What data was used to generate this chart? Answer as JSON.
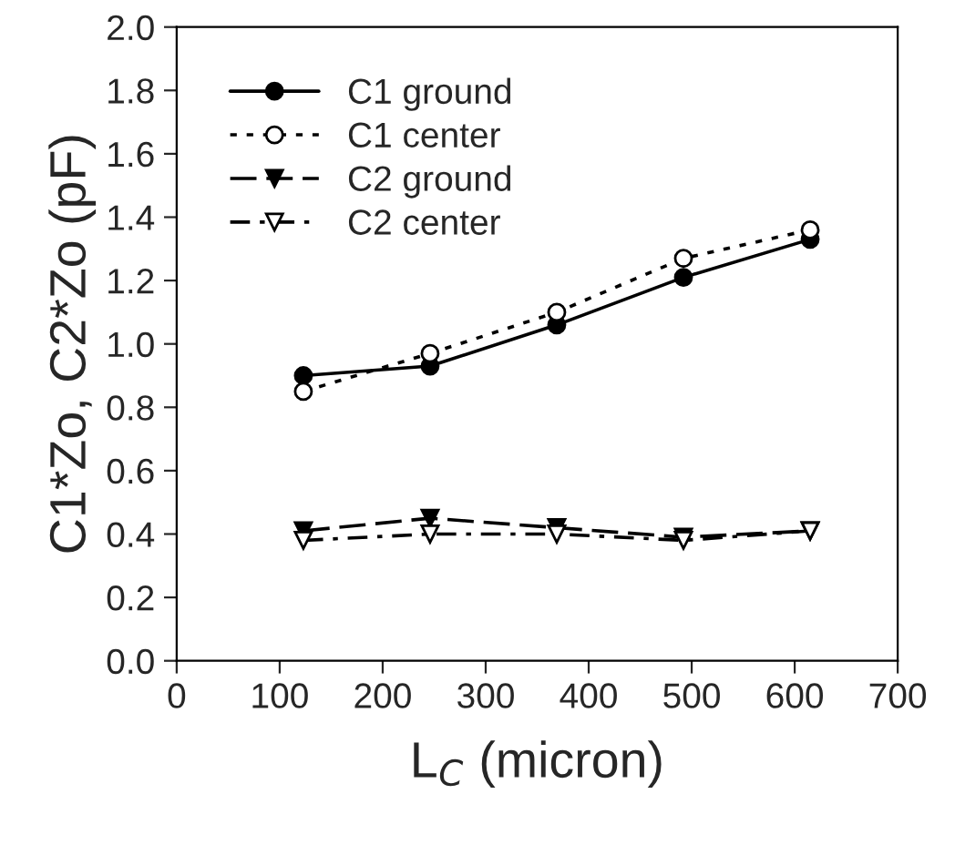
{
  "chart_data": {
    "type": "line",
    "xlabel": "L$_{C}$ (micron)",
    "ylabel": "C1*Zo, C2*Zo (pF)",
    "x": [
      123,
      246,
      369,
      492,
      615
    ],
    "series": [
      {
        "name": "C1 ground",
        "color": "#000000",
        "values": [
          0.9,
          0.93,
          1.06,
          1.21,
          1.33
        ],
        "marker": "circle",
        "line_style": "solid"
      },
      {
        "name": "C1 center",
        "color": "#000000",
        "values": [
          0.85,
          0.97,
          1.1,
          1.27,
          1.36
        ],
        "marker": "circle_open",
        "line_style": "dotted"
      },
      {
        "name": "C2 ground",
        "color": "#000000",
        "values": [
          0.41,
          0.45,
          0.42,
          0.39,
          0.41
        ],
        "marker": "triangle_down",
        "line_style": "dashed"
      },
      {
        "name": "C2 center",
        "color": "#000000",
        "values": [
          0.38,
          0.4,
          0.4,
          0.38,
          0.41
        ],
        "marker": "triangle_down_open",
        "line_style": "dashdot"
      }
    ],
    "xlim": [
      0,
      700
    ],
    "xticks": [
      0,
      100,
      200,
      300,
      400,
      500,
      600,
      700
    ],
    "ylim": [
      0,
      2.0
    ],
    "yticks": [
      {
        "value": 0,
        "label": "0.0"
      },
      {
        "value": 0.2,
        "label": "0.2"
      },
      {
        "value": 0.4,
        "label": "0.4"
      },
      {
        "value": 0.6,
        "label": "0.6"
      },
      {
        "value": 0.8,
        "label": "0.8"
      },
      {
        "value": 1.0,
        "label": "1.0"
      },
      {
        "value": 1.2,
        "label": "1.2"
      },
      {
        "value": 1.4,
        "label": "1.4"
      },
      {
        "value": 1.6,
        "label": "1.6"
      },
      {
        "value": 1.8,
        "label": "1.8"
      },
      {
        "value": 2.0,
        "label": "2.0"
      }
    ],
    "grid": false,
    "legend": "top left"
  }
}
